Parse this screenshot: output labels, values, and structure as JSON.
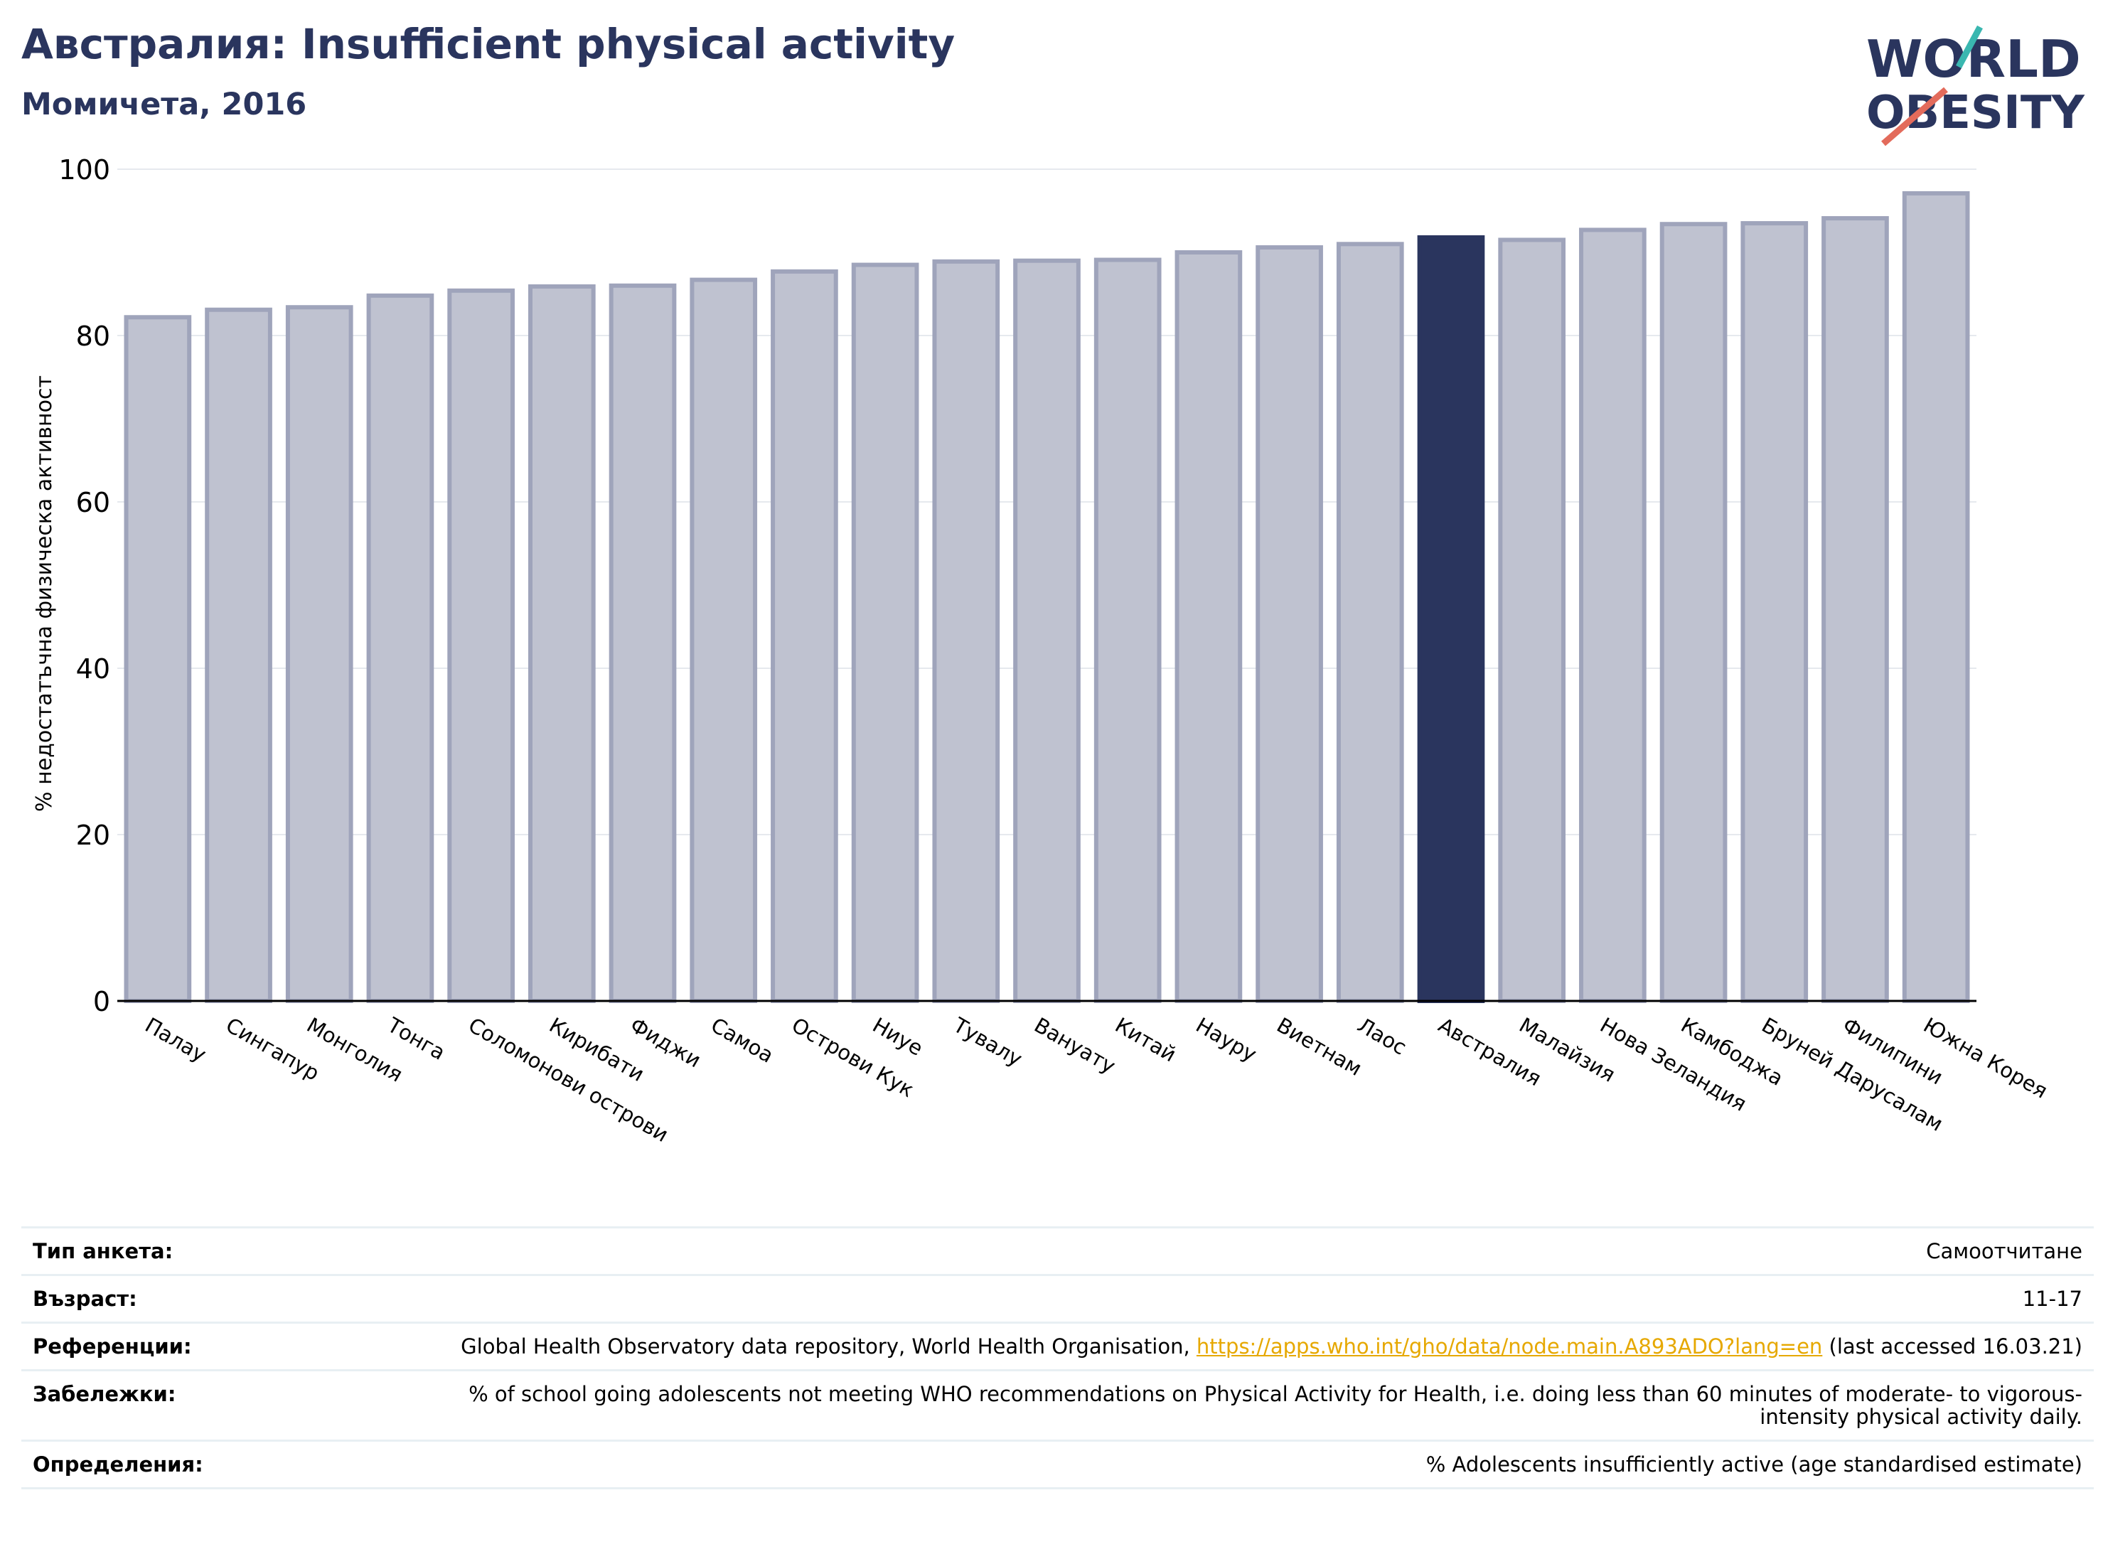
{
  "header": {
    "title": "Австралия: Insufficient physical activity",
    "subtitle": "Момичета, 2016"
  },
  "logo": {
    "line1": "WORLD",
    "line2": "OBESITY",
    "colors": {
      "text": "#2a355e",
      "teal": "#3ab7b0",
      "coral": "#e36b5b"
    }
  },
  "chart_data": {
    "type": "bar",
    "ylabel": "% недостатъчна физическа активност",
    "xlabel": "",
    "ylim": [
      0,
      100
    ],
    "yticks": [
      0,
      20,
      40,
      60,
      80,
      100
    ],
    "grid": true,
    "highlight": "Австралия",
    "colors": {
      "bar": "#bfc2d0",
      "bar_edge": "#9fa4bb",
      "highlight": "#2a355e"
    },
    "categories": [
      "Палау",
      "Сингапур",
      "Монголия",
      "Тонга",
      "Соломонови острови",
      "Кирибати",
      "Фиджи",
      "Самоа",
      "Острови Кук",
      "Ниуе",
      "Тувалу",
      "Вануату",
      "Китай",
      "Науру",
      "Виетнам",
      "Лаос",
      "Австралия",
      "Малайзия",
      "Нова Зеландия",
      "Камбоджа",
      "Бруней Дарусалам",
      "Филипини",
      "Южна Корея"
    ],
    "values": [
      82.2,
      83.1,
      83.4,
      84.8,
      85.4,
      85.9,
      86.0,
      86.7,
      87.7,
      88.5,
      88.9,
      89.0,
      89.1,
      90.0,
      90.6,
      91.0,
      91.8,
      91.5,
      92.7,
      93.4,
      93.5,
      94.1,
      97.1
    ]
  },
  "info": {
    "survey_label": "Тип анкета:",
    "survey_value": "Самоотчитане",
    "age_label": "Възраст:",
    "age_value": "11-17",
    "ref_label": "Референции:",
    "ref_text": "Global Health Observatory data repository, World Health Organisation, ",
    "ref_link": "https://apps.who.int/gho/data/node.main.A893ADO?lang=en",
    "ref_after": " (last accessed 16.03.21)",
    "notes_label": "Забележки:",
    "notes_value": "% of school going adolescents not meeting WHO recommendations on Physical Activity for Health, i.e. doing less than 60 minutes of moderate- to vigorous-intensity physical activity daily.",
    "def_label": "Определения:",
    "def_value": "% Adolescents insufficiently active (age standardised estimate)"
  }
}
